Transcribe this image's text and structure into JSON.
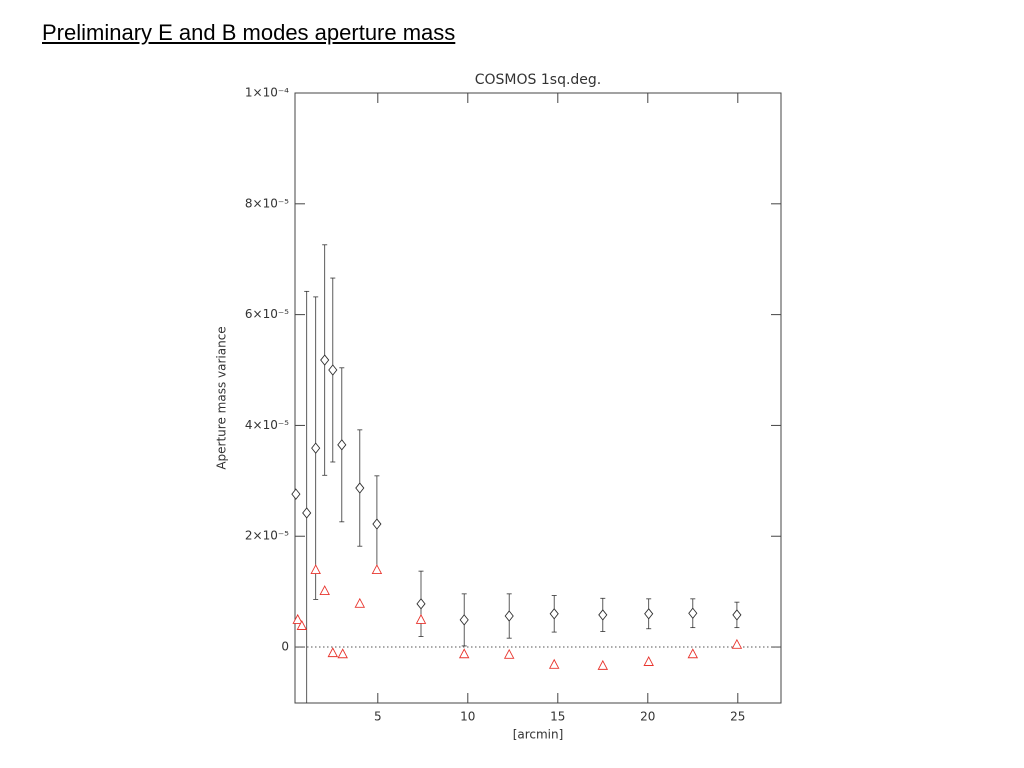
{
  "slide": {
    "title": "Preliminary E and B modes aperture mass"
  },
  "chart_data": {
    "type": "scatter",
    "title": "COSMOS 1sq.deg.",
    "x_label": "[arcmin]",
    "y_label": "Aperture mass variance",
    "xlim": [
      0.4,
      27.4
    ],
    "ylim": [
      -1.01e-05,
      0.0001
    ],
    "xticks": [
      5,
      10,
      15,
      20,
      25
    ],
    "yticks": [
      0,
      {
        "value": 2e-05,
        "label": "2×10⁻⁵"
      },
      {
        "value": 4e-05,
        "label": "4×10⁻⁵"
      },
      {
        "value": 6e-05,
        "label": "6×10⁻⁵"
      },
      {
        "value": 8e-05,
        "label": "8×10⁻⁵"
      },
      {
        "value": 0.0001,
        "label": "1×10⁻⁴"
      }
    ],
    "zero_line": true,
    "series": [
      {
        "marker": "diamond",
        "color": "#333333",
        "x": [
          0.45,
          1.05,
          1.55,
          2.05,
          2.5,
          3.0,
          4.0,
          4.95,
          7.4,
          9.8,
          12.3,
          14.8,
          17.5,
          20.05,
          22.5,
          24.95
        ],
        "values": [
          2.76e-05,
          2.42e-05,
          3.59e-05,
          5.18e-05,
          5e-05,
          3.65e-05,
          2.87e-05,
          2.22e-05,
          7.8e-06,
          4.9e-06,
          5.6e-06,
          6e-06,
          5.8e-06,
          6e-06,
          6.1e-06,
          5.8e-06
        ],
        "errors": [
          null,
          4e-05,
          2.73e-05,
          2.08e-05,
          1.66e-05,
          1.39e-05,
          1.05e-05,
          8.7e-06,
          5.9e-06,
          4.7e-06,
          4e-06,
          3.3e-06,
          3e-06,
          2.7e-06,
          2.6e-06,
          2.3e-06
        ]
      },
      {
        "marker": "triangle",
        "color": "#e8352e",
        "x": [
          0.55,
          0.78,
          1.55,
          2.05,
          2.5,
          3.05,
          4.0,
          4.95,
          7.4,
          9.8,
          12.3,
          14.8,
          17.5,
          20.05,
          22.5,
          24.95
        ],
        "values": [
          4.9e-06,
          3.8e-06,
          1.39e-05,
          1.01e-05,
          -1.1e-06,
          -1.3e-06,
          7.8e-06,
          1.39e-05,
          4.9e-06,
          -1.3e-06,
          -1.4e-06,
          -3.2e-06,
          -3.4e-06,
          -2.7e-06,
          -1.3e-06,
          4e-07
        ]
      }
    ]
  }
}
